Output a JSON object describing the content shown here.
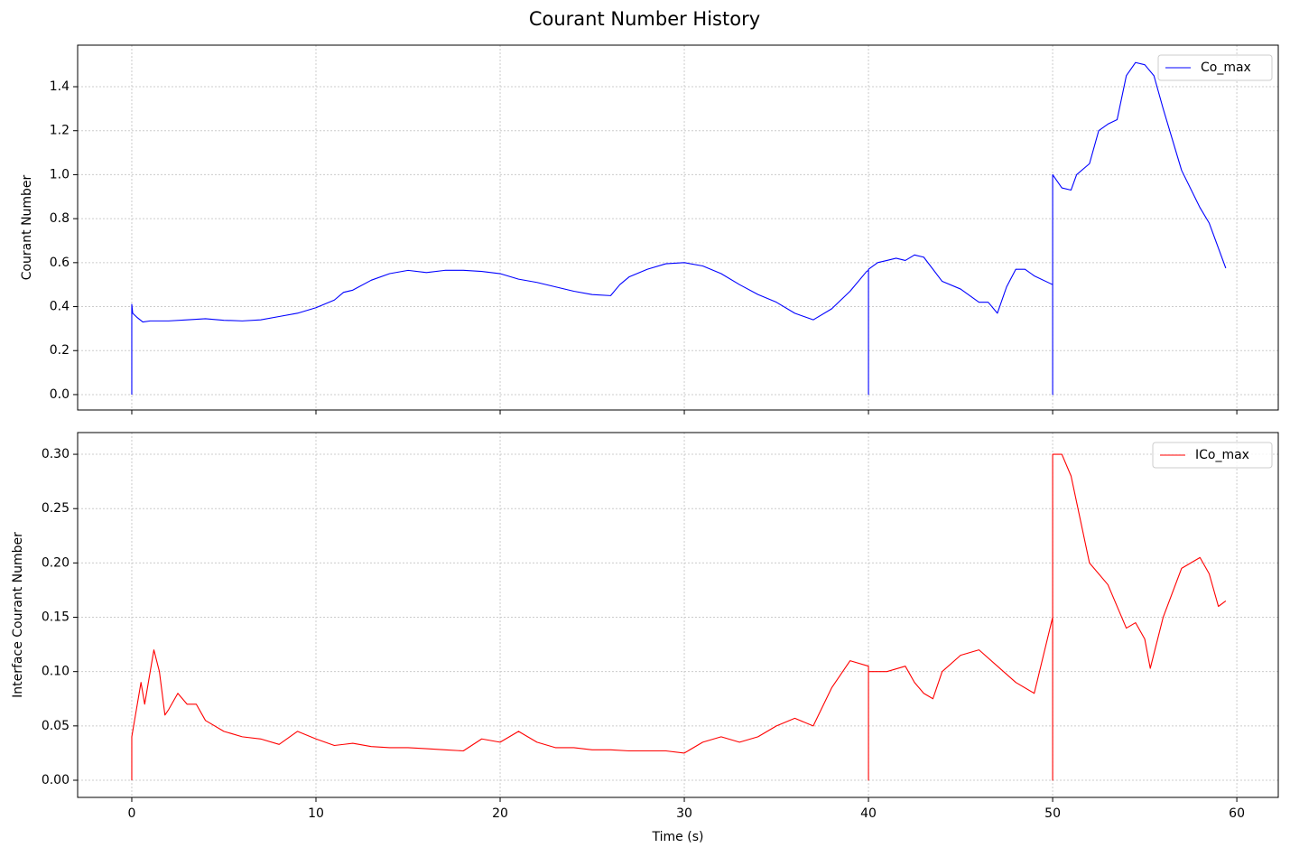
{
  "title": "Courant Number History",
  "chart_data": [
    {
      "type": "line",
      "ylabel": "Courant Number",
      "x": [
        0,
        0,
        0.05,
        0.3,
        0.6,
        1,
        2,
        3,
        4,
        5,
        6,
        7,
        8,
        9,
        10,
        11,
        11.5,
        12,
        13,
        14,
        15,
        16,
        17,
        18,
        19,
        20,
        21,
        22,
        23,
        24,
        25,
        26,
        26.5,
        27,
        28,
        29,
        30,
        31,
        32,
        33,
        34,
        35,
        36,
        37,
        38,
        39,
        39.9,
        40,
        40,
        40,
        40.5,
        41,
        41.5,
        42,
        42.5,
        43,
        44,
        45,
        46,
        46.5,
        47,
        47.5,
        48,
        48.5,
        49,
        50,
        50,
        50,
        50.5,
        51,
        51.3,
        52,
        52.5,
        53,
        53.5,
        54,
        54.5,
        55,
        55.5,
        56,
        57,
        58,
        58.5,
        59.4
      ],
      "series": [
        {
          "name": "Co_max",
          "color": "#0000ff",
          "values": [
            0,
            0.41,
            0.37,
            0.35,
            0.33,
            0.335,
            0.335,
            0.34,
            0.345,
            0.338,
            0.335,
            0.34,
            0.355,
            0.37,
            0.395,
            0.43,
            0.465,
            0.475,
            0.52,
            0.55,
            0.565,
            0.555,
            0.565,
            0.565,
            0.56,
            0.55,
            0.525,
            0.51,
            0.49,
            0.47,
            0.455,
            0.45,
            0.5,
            0.535,
            0.57,
            0.595,
            0.6,
            0.585,
            0.55,
            0.5,
            0.455,
            0.42,
            0.37,
            0.34,
            0.39,
            0.47,
            0.56,
            0.565,
            0,
            0.57,
            0.6,
            0.61,
            0.62,
            0.61,
            0.635,
            0.625,
            0.515,
            0.48,
            0.42,
            0.42,
            0.37,
            0.49,
            0.57,
            0.57,
            0.54,
            0.5,
            0,
            1.0,
            0.94,
            0.93,
            1.0,
            1.05,
            1.2,
            1.23,
            1.25,
            1.45,
            1.51,
            1.5,
            1.45,
            1.3,
            1.02,
            0.85,
            0.78,
            0.575
          ]
        }
      ],
      "xlim": [
        -2.94,
        62.25
      ],
      "xticks": [
        0,
        10,
        20,
        30,
        40,
        50,
        60
      ],
      "ylim": [
        -0.07,
        1.589
      ],
      "yticks": [
        {
          "value": 0,
          "label": "0.0"
        },
        0.2,
        0.4,
        0.6,
        0.8,
        {
          "value": 1,
          "label": "1.0"
        },
        1.2,
        1.4
      ],
      "grid": true,
      "legend": "upper right"
    },
    {
      "type": "line",
      "ylabel": "Interface Courant Number",
      "xlabel": "Time (s)",
      "x": [
        0,
        0,
        0.2,
        0.5,
        0.7,
        1,
        1.2,
        1.5,
        1.8,
        2,
        2.5,
        3,
        3.5,
        4,
        5,
        6,
        7,
        8,
        9,
        10,
        11,
        12,
        13,
        14,
        15,
        16,
        17,
        18,
        19,
        20,
        21,
        22,
        23,
        24,
        25,
        26,
        27,
        28,
        29,
        30,
        31,
        32,
        33,
        34,
        35,
        36,
        37,
        38,
        39,
        40,
        40,
        40,
        41,
        42,
        42.5,
        43,
        43.5,
        44,
        45,
        46,
        47,
        48,
        49,
        50,
        50,
        50,
        50.5,
        51,
        51.5,
        52,
        53,
        54,
        54.5,
        55,
        55.3,
        56,
        57,
        58,
        58.5,
        59,
        59.4
      ],
      "series": [
        {
          "name": "ICo_max",
          "color": "#ff0000",
          "values": [
            0,
            0.04,
            0.06,
            0.09,
            0.07,
            0.1,
            0.12,
            0.1,
            0.06,
            0.065,
            0.08,
            0.07,
            0.07,
            0.055,
            0.045,
            0.04,
            0.038,
            0.033,
            0.045,
            0.038,
            0.032,
            0.034,
            0.031,
            0.03,
            0.03,
            0.029,
            0.028,
            0.027,
            0.038,
            0.035,
            0.045,
            0.035,
            0.03,
            0.03,
            0.028,
            0.028,
            0.027,
            0.027,
            0.027,
            0.025,
            0.035,
            0.04,
            0.035,
            0.04,
            0.05,
            0.057,
            0.05,
            0.085,
            0.11,
            0.105,
            0,
            0.1,
            0.1,
            0.105,
            0.09,
            0.08,
            0.075,
            0.1,
            0.115,
            0.12,
            0.105,
            0.09,
            0.08,
            0.15,
            0,
            0.3,
            0.3,
            0.28,
            0.24,
            0.2,
            0.18,
            0.14,
            0.145,
            0.13,
            0.103,
            0.15,
            0.195,
            0.205,
            0.19,
            0.16,
            0.165
          ]
        }
      ],
      "xlim": [
        -2.94,
        62.25
      ],
      "xticks": [
        0,
        10,
        20,
        30,
        40,
        50,
        60
      ],
      "ylim": [
        -0.0158,
        0.32
      ],
      "yticks": [
        {
          "value": 0,
          "label": "0.00"
        },
        0.05,
        {
          "value": 0.1,
          "label": "0.10"
        },
        0.15,
        {
          "value": 0.2,
          "label": "0.20"
        },
        0.25,
        {
          "value": 0.3,
          "label": "0.30"
        }
      ],
      "grid": true,
      "legend": "upper right"
    }
  ]
}
